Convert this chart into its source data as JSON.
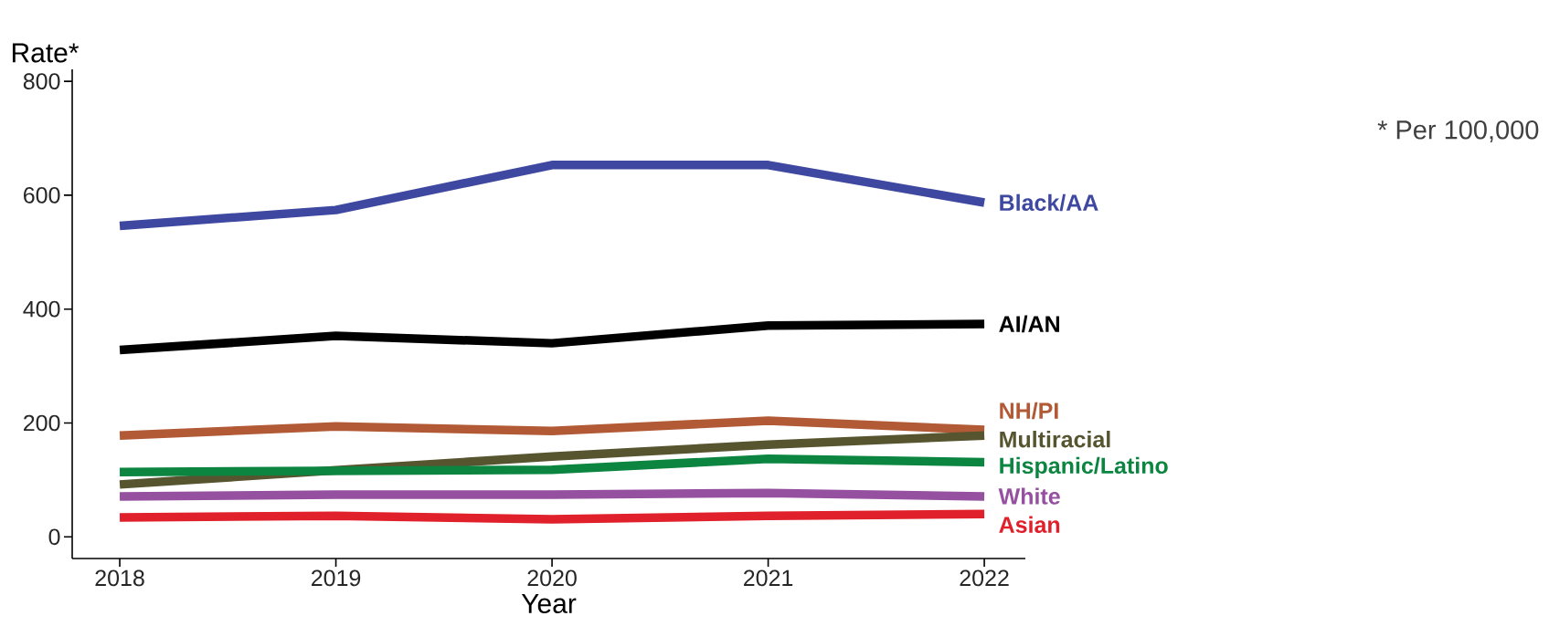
{
  "chart_data": {
    "type": "line",
    "ylabel": "Rate*",
    "xlabel": "Year",
    "annotations": [
      "* Per 100,000"
    ],
    "x": [
      2018,
      2019,
      2020,
      2021,
      2022
    ],
    "xlim": [
      2017.78,
      2022.19
    ],
    "xticks": [
      2018,
      2019,
      2020,
      2021,
      2022
    ],
    "ylim": [
      -38,
      821
    ],
    "yticks": [
      0,
      200,
      400,
      600,
      800
    ],
    "grid": false,
    "marker": "none",
    "line_style": "solid",
    "series": [
      {
        "name": "Black/AA",
        "color": "#3f48a0",
        "values": [
          546,
          574,
          653,
          653,
          587
        ]
      },
      {
        "name": "AI/AN",
        "color": "#000000",
        "values": [
          328,
          353,
          340,
          371,
          374
        ]
      },
      {
        "name": "NH/PI",
        "color": "#b25a35",
        "values": [
          178,
          194,
          186,
          204,
          188
        ]
      },
      {
        "name": "Multiracial",
        "color": "#575530",
        "values": [
          92,
          117,
          141,
          162,
          178
        ]
      },
      {
        "name": "Hispanic/Latino",
        "color": "#0b8540",
        "values": [
          114,
          116,
          118,
          137,
          131
        ]
      },
      {
        "name": "White",
        "color": "#9550a0",
        "values": [
          71,
          74,
          74,
          77,
          71
        ]
      },
      {
        "name": "Asian",
        "color": "#e0202a",
        "values": [
          34,
          37,
          31,
          37,
          40
        ]
      }
    ]
  }
}
